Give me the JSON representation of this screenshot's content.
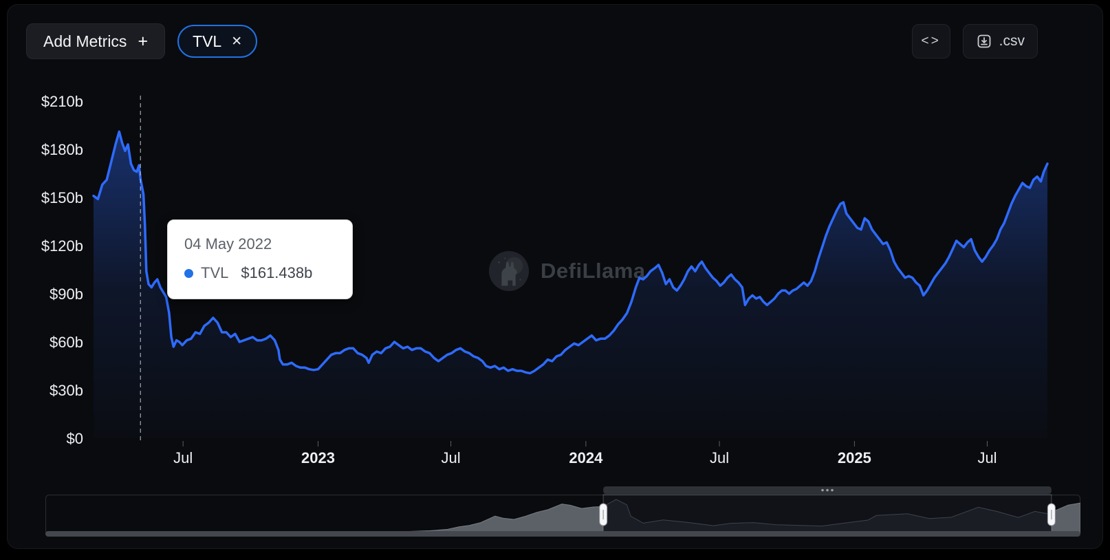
{
  "toolbar": {
    "add_metrics_label": "Add Metrics",
    "add_metrics_plus": "+",
    "tvl_pill_label": "TVL",
    "tvl_pill_close": "✕",
    "code_button_glyph": "<>",
    "csv_button_label": ".csv"
  },
  "tooltip": {
    "date": "04 May 2022",
    "series": "TVL",
    "value": "$161.438b",
    "marker_color": "#2172e5"
  },
  "watermark": {
    "text": "DefiLlama"
  },
  "colors": {
    "background": "#000000",
    "panel": "#0a0b0e",
    "line": "#2e6bff",
    "accent": "#2172e5",
    "axis_text": "#eef0f3",
    "mini_outside": "#5c6168",
    "mini_inside_fill": "#15171b",
    "mini_inside_stroke": "#3a3f46",
    "rail": "#44474d",
    "grip_bar": "#2e3136",
    "handle_fill": "#f5f6f7"
  },
  "chart_data": {
    "type": "area",
    "series_name": "TVL",
    "unit": "USD billions",
    "ylim": [
      0,
      210
    ],
    "grid": false,
    "legend": "none",
    "y_ticks": [
      {
        "value": 210,
        "label": "$210b"
      },
      {
        "value": 180,
        "label": "$180b"
      },
      {
        "value": 150,
        "label": "$150b"
      },
      {
        "value": 120,
        "label": "$120b"
      },
      {
        "value": 90,
        "label": "$90b"
      },
      {
        "value": 60,
        "label": "$60b"
      },
      {
        "value": 30,
        "label": "$30b"
      },
      {
        "value": 0,
        "label": "$0"
      }
    ],
    "x_ticks": [
      {
        "date": "2022-07-01",
        "label": "Jul",
        "bold": false
      },
      {
        "date": "2023-01-01",
        "label": "2023",
        "bold": true
      },
      {
        "date": "2023-07-01",
        "label": "Jul",
        "bold": false
      },
      {
        "date": "2024-01-01",
        "label": "2024",
        "bold": true
      },
      {
        "date": "2024-07-01",
        "label": "Jul",
        "bold": false
      },
      {
        "date": "2025-01-01",
        "label": "2025",
        "bold": true
      },
      {
        "date": "2025-07-01",
        "label": "Jul",
        "bold": false
      }
    ],
    "hover": {
      "date": "2022-05-04",
      "value": 161.438
    },
    "points": [
      [
        "2022-03-01",
        151
      ],
      [
        "2022-03-07",
        149
      ],
      [
        "2022-03-13",
        158
      ],
      [
        "2022-03-19",
        161
      ],
      [
        "2022-03-25",
        172
      ],
      [
        "2022-03-31",
        183
      ],
      [
        "2022-04-05",
        191
      ],
      [
        "2022-04-09",
        184
      ],
      [
        "2022-04-13",
        179
      ],
      [
        "2022-04-17",
        183
      ],
      [
        "2022-04-21",
        171
      ],
      [
        "2022-04-25",
        167
      ],
      [
        "2022-04-29",
        166
      ],
      [
        "2022-05-02",
        170
      ],
      [
        "2022-05-04",
        161.438
      ],
      [
        "2022-05-08",
        152
      ],
      [
        "2022-05-10",
        133
      ],
      [
        "2022-05-12",
        104
      ],
      [
        "2022-05-15",
        96
      ],
      [
        "2022-05-19",
        94
      ],
      [
        "2022-05-23",
        97
      ],
      [
        "2022-05-27",
        99
      ],
      [
        "2022-05-31",
        94
      ],
      [
        "2022-06-04",
        91
      ],
      [
        "2022-06-08",
        88
      ],
      [
        "2022-06-12",
        78
      ],
      [
        "2022-06-15",
        63
      ],
      [
        "2022-06-18",
        57
      ],
      [
        "2022-06-22",
        61
      ],
      [
        "2022-06-26",
        60
      ],
      [
        "2022-06-30",
        58
      ],
      [
        "2022-07-06",
        61
      ],
      [
        "2022-07-12",
        62
      ],
      [
        "2022-07-18",
        66
      ],
      [
        "2022-07-24",
        65
      ],
      [
        "2022-07-30",
        70
      ],
      [
        "2022-08-05",
        72
      ],
      [
        "2022-08-11",
        75
      ],
      [
        "2022-08-17",
        72
      ],
      [
        "2022-08-23",
        66
      ],
      [
        "2022-08-29",
        66
      ],
      [
        "2022-09-04",
        63
      ],
      [
        "2022-09-10",
        65
      ],
      [
        "2022-09-16",
        60
      ],
      [
        "2022-09-22",
        61
      ],
      [
        "2022-09-28",
        62
      ],
      [
        "2022-10-04",
        63
      ],
      [
        "2022-10-10",
        61
      ],
      [
        "2022-10-16",
        61
      ],
      [
        "2022-10-22",
        62
      ],
      [
        "2022-10-28",
        64
      ],
      [
        "2022-11-03",
        61
      ],
      [
        "2022-11-08",
        55
      ],
      [
        "2022-11-10",
        49
      ],
      [
        "2022-11-14",
        46
      ],
      [
        "2022-11-20",
        46
      ],
      [
        "2022-11-26",
        47
      ],
      [
        "2022-12-02",
        45
      ],
      [
        "2022-12-08",
        44
      ],
      [
        "2022-12-14",
        44
      ],
      [
        "2022-12-20",
        43
      ],
      [
        "2022-12-26",
        42.5
      ],
      [
        "2023-01-01",
        43
      ],
      [
        "2023-01-07",
        46
      ],
      [
        "2023-01-13",
        49
      ],
      [
        "2023-01-19",
        52
      ],
      [
        "2023-01-25",
        53
      ],
      [
        "2023-01-31",
        53
      ],
      [
        "2023-02-06",
        55
      ],
      [
        "2023-02-12",
        56
      ],
      [
        "2023-02-18",
        56
      ],
      [
        "2023-02-24",
        53
      ],
      [
        "2023-03-02",
        52
      ],
      [
        "2023-03-08",
        50
      ],
      [
        "2023-03-11",
        47
      ],
      [
        "2023-03-16",
        52
      ],
      [
        "2023-03-22",
        54
      ],
      [
        "2023-03-28",
        53
      ],
      [
        "2023-04-03",
        56
      ],
      [
        "2023-04-09",
        57
      ],
      [
        "2023-04-15",
        60
      ],
      [
        "2023-04-21",
        58
      ],
      [
        "2023-04-27",
        56
      ],
      [
        "2023-05-03",
        57
      ],
      [
        "2023-05-09",
        55
      ],
      [
        "2023-05-15",
        56
      ],
      [
        "2023-05-21",
        56
      ],
      [
        "2023-05-27",
        54
      ],
      [
        "2023-06-02",
        53
      ],
      [
        "2023-06-08",
        50
      ],
      [
        "2023-06-14",
        48
      ],
      [
        "2023-06-20",
        50
      ],
      [
        "2023-06-26",
        52
      ],
      [
        "2023-07-02",
        53
      ],
      [
        "2023-07-08",
        55
      ],
      [
        "2023-07-14",
        56
      ],
      [
        "2023-07-20",
        54
      ],
      [
        "2023-07-26",
        53
      ],
      [
        "2023-08-01",
        51
      ],
      [
        "2023-08-07",
        50
      ],
      [
        "2023-08-13",
        48
      ],
      [
        "2023-08-18",
        45
      ],
      [
        "2023-08-24",
        44
      ],
      [
        "2023-08-30",
        45
      ],
      [
        "2023-09-05",
        43
      ],
      [
        "2023-09-11",
        44
      ],
      [
        "2023-09-17",
        42
      ],
      [
        "2023-09-23",
        43
      ],
      [
        "2023-09-29",
        42
      ],
      [
        "2023-10-05",
        42
      ],
      [
        "2023-10-11",
        41
      ],
      [
        "2023-10-17",
        40.5
      ],
      [
        "2023-10-23",
        42
      ],
      [
        "2023-10-29",
        44
      ],
      [
        "2023-11-04",
        46
      ],
      [
        "2023-11-10",
        49
      ],
      [
        "2023-11-16",
        48
      ],
      [
        "2023-11-22",
        51
      ],
      [
        "2023-11-28",
        52
      ],
      [
        "2023-12-04",
        55
      ],
      [
        "2023-12-10",
        57
      ],
      [
        "2023-12-16",
        59
      ],
      [
        "2023-12-22",
        58
      ],
      [
        "2023-12-28",
        60
      ],
      [
        "2024-01-03",
        62
      ],
      [
        "2024-01-09",
        64
      ],
      [
        "2024-01-15",
        61
      ],
      [
        "2024-01-21",
        62
      ],
      [
        "2024-01-27",
        62
      ],
      [
        "2024-02-02",
        64
      ],
      [
        "2024-02-08",
        67
      ],
      [
        "2024-02-14",
        71
      ],
      [
        "2024-02-20",
        74
      ],
      [
        "2024-02-26",
        78
      ],
      [
        "2024-03-03",
        85
      ],
      [
        "2024-03-09",
        94
      ],
      [
        "2024-03-14",
        100
      ],
      [
        "2024-03-19",
        99
      ],
      [
        "2024-03-24",
        101
      ],
      [
        "2024-03-29",
        104
      ],
      [
        "2024-04-04",
        106
      ],
      [
        "2024-04-09",
        108
      ],
      [
        "2024-04-14",
        103
      ],
      [
        "2024-04-19",
        96
      ],
      [
        "2024-04-24",
        99
      ],
      [
        "2024-04-29",
        94
      ],
      [
        "2024-05-04",
        92
      ],
      [
        "2024-05-09",
        95
      ],
      [
        "2024-05-14",
        99
      ],
      [
        "2024-05-19",
        104
      ],
      [
        "2024-05-24",
        107
      ],
      [
        "2024-05-29",
        104
      ],
      [
        "2024-06-03",
        108
      ],
      [
        "2024-06-07",
        110
      ],
      [
        "2024-06-12",
        106
      ],
      [
        "2024-06-17",
        103
      ],
      [
        "2024-06-22",
        100
      ],
      [
        "2024-06-27",
        98
      ],
      [
        "2024-07-02",
        95
      ],
      [
        "2024-07-07",
        97
      ],
      [
        "2024-07-12",
        100
      ],
      [
        "2024-07-17",
        102
      ],
      [
        "2024-07-22",
        99
      ],
      [
        "2024-07-27",
        97
      ],
      [
        "2024-08-01",
        94
      ],
      [
        "2024-08-05",
        83
      ],
      [
        "2024-08-10",
        87
      ],
      [
        "2024-08-15",
        89
      ],
      [
        "2024-08-20",
        87
      ],
      [
        "2024-08-25",
        88
      ],
      [
        "2024-08-30",
        85
      ],
      [
        "2024-09-04",
        83
      ],
      [
        "2024-09-09",
        85
      ],
      [
        "2024-09-14",
        87
      ],
      [
        "2024-09-19",
        90
      ],
      [
        "2024-09-24",
        92
      ],
      [
        "2024-09-29",
        92
      ],
      [
        "2024-10-04",
        90
      ],
      [
        "2024-10-09",
        92
      ],
      [
        "2024-10-14",
        93
      ],
      [
        "2024-10-19",
        95
      ],
      [
        "2024-10-24",
        97
      ],
      [
        "2024-10-29",
        95
      ],
      [
        "2024-11-03",
        98
      ],
      [
        "2024-11-08",
        104
      ],
      [
        "2024-11-13",
        112
      ],
      [
        "2024-11-18",
        119
      ],
      [
        "2024-11-23",
        126
      ],
      [
        "2024-11-28",
        132
      ],
      [
        "2024-12-03",
        137
      ],
      [
        "2024-12-08",
        142
      ],
      [
        "2024-12-13",
        146
      ],
      [
        "2024-12-17",
        147
      ],
      [
        "2024-12-21",
        140
      ],
      [
        "2024-12-26",
        137
      ],
      [
        "2024-12-31",
        134
      ],
      [
        "2025-01-05",
        131
      ],
      [
        "2025-01-10",
        130
      ],
      [
        "2025-01-15",
        137
      ],
      [
        "2025-01-20",
        135
      ],
      [
        "2025-01-25",
        130
      ],
      [
        "2025-01-30",
        127
      ],
      [
        "2025-02-04",
        124
      ],
      [
        "2025-02-09",
        121
      ],
      [
        "2025-02-14",
        122
      ],
      [
        "2025-02-19",
        117
      ],
      [
        "2025-02-24",
        110
      ],
      [
        "2025-03-01",
        106
      ],
      [
        "2025-03-06",
        103
      ],
      [
        "2025-03-11",
        100
      ],
      [
        "2025-03-16",
        101
      ],
      [
        "2025-03-21",
        100
      ],
      [
        "2025-03-26",
        97
      ],
      [
        "2025-03-31",
        95
      ],
      [
        "2025-04-05",
        89
      ],
      [
        "2025-04-10",
        92
      ],
      [
        "2025-04-15",
        96
      ],
      [
        "2025-04-20",
        100
      ],
      [
        "2025-04-25",
        103
      ],
      [
        "2025-04-30",
        106
      ],
      [
        "2025-05-05",
        109
      ],
      [
        "2025-05-10",
        113
      ],
      [
        "2025-05-15",
        118
      ],
      [
        "2025-05-20",
        123
      ],
      [
        "2025-05-25",
        121
      ],
      [
        "2025-05-30",
        119
      ],
      [
        "2025-06-04",
        122
      ],
      [
        "2025-06-09",
        124
      ],
      [
        "2025-06-14",
        117
      ],
      [
        "2025-06-19",
        113
      ],
      [
        "2025-06-24",
        110
      ],
      [
        "2025-06-29",
        113
      ],
      [
        "2025-07-04",
        117
      ],
      [
        "2025-07-09",
        120
      ],
      [
        "2025-07-14",
        124
      ],
      [
        "2025-07-19",
        130
      ],
      [
        "2025-07-24",
        134
      ],
      [
        "2025-07-29",
        140
      ],
      [
        "2025-08-03",
        146
      ],
      [
        "2025-08-08",
        151
      ],
      [
        "2025-08-13",
        155
      ],
      [
        "2025-08-18",
        159
      ],
      [
        "2025-08-23",
        157
      ],
      [
        "2025-08-28",
        156
      ],
      [
        "2025-09-02",
        161
      ],
      [
        "2025-09-07",
        163
      ],
      [
        "2025-09-12",
        160
      ],
      [
        "2025-09-16",
        166
      ],
      [
        "2025-09-21",
        171
      ]
    ],
    "brush": {
      "range_start_pct": 53.9,
      "range_end_pct": 97.2,
      "history_points": [
        [
          "2018-01-01",
          0.1
        ],
        [
          "2018-07-01",
          0.2
        ],
        [
          "2019-01-01",
          0.3
        ],
        [
          "2019-07-01",
          0.5
        ],
        [
          "2020-01-01",
          0.7
        ],
        [
          "2020-04-01",
          0.8
        ],
        [
          "2020-07-01",
          2.5
        ],
        [
          "2020-08-15",
          7
        ],
        [
          "2020-10-01",
          11
        ],
        [
          "2020-11-15",
          14
        ],
        [
          "2021-01-01",
          22
        ],
        [
          "2021-02-01",
          36
        ],
        [
          "2021-03-01",
          44
        ],
        [
          "2021-04-01",
          60
        ],
        [
          "2021-05-10",
          97
        ],
        [
          "2021-06-01",
          85
        ],
        [
          "2021-07-01",
          78
        ],
        [
          "2021-08-01",
          96
        ],
        [
          "2021-09-01",
          118
        ],
        [
          "2021-10-01",
          133
        ],
        [
          "2021-11-08",
          165
        ],
        [
          "2021-12-01",
          158
        ],
        [
          "2022-01-01",
          140
        ],
        [
          "2022-02-01",
          148
        ],
        [
          "2022-03-01",
          151
        ],
        [
          "2022-04-05",
          191
        ],
        [
          "2022-05-04",
          161
        ],
        [
          "2022-05-15",
          96
        ],
        [
          "2022-06-18",
          57
        ],
        [
          "2022-08-11",
          75
        ],
        [
          "2022-10-15",
          61
        ],
        [
          "2022-12-26",
          42.5
        ],
        [
          "2023-02-12",
          56
        ],
        [
          "2023-04-15",
          60
        ],
        [
          "2023-06-14",
          48
        ],
        [
          "2023-08-24",
          44
        ],
        [
          "2023-10-17",
          40.5
        ],
        [
          "2023-12-28",
          60
        ],
        [
          "2024-02-20",
          74
        ],
        [
          "2024-03-14",
          100
        ],
        [
          "2024-06-07",
          110
        ],
        [
          "2024-08-05",
          83
        ],
        [
          "2024-10-04",
          90
        ],
        [
          "2024-12-17",
          147
        ],
        [
          "2025-02-09",
          121
        ],
        [
          "2025-04-05",
          89
        ],
        [
          "2025-05-20",
          123
        ],
        [
          "2025-06-24",
          110
        ],
        [
          "2025-08-18",
          159
        ],
        [
          "2025-09-21",
          171
        ]
      ]
    }
  }
}
